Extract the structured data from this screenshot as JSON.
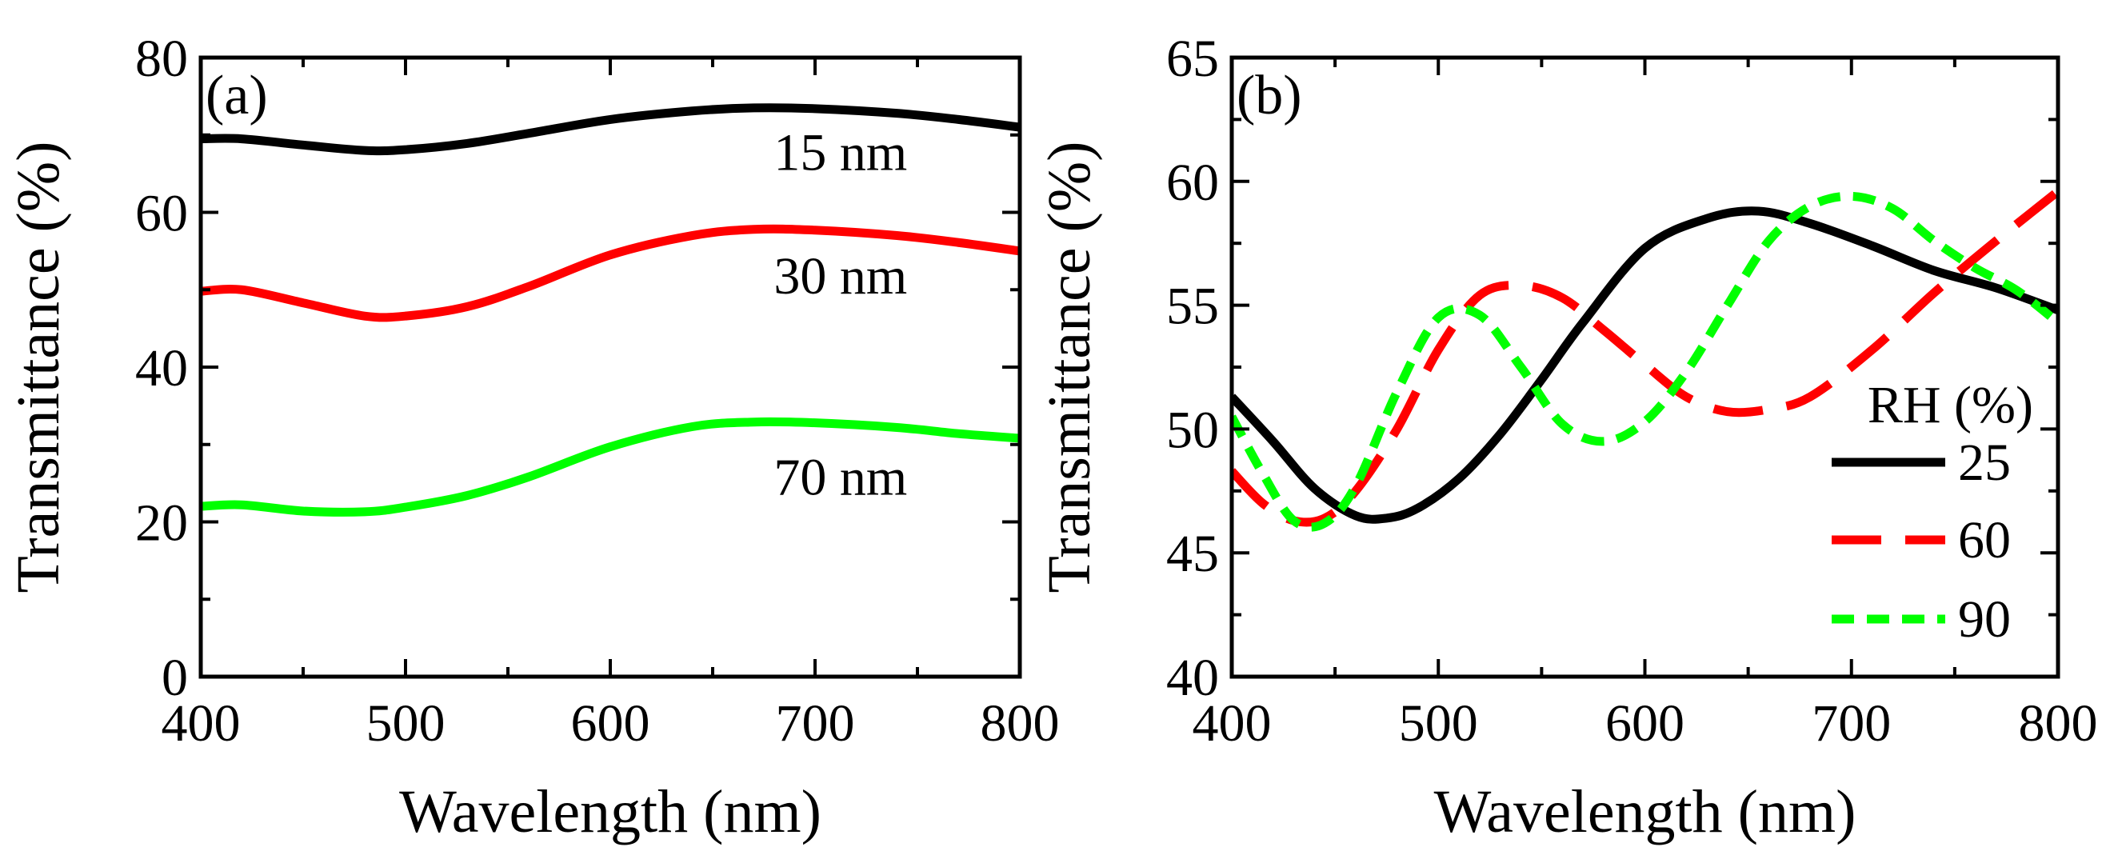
{
  "chart_data": [
    {
      "type": "line",
      "panel_label": "(a)",
      "xlabel": "Wavelength (nm)",
      "ylabel": "Transmittance (%)",
      "xlim": [
        400,
        800
      ],
      "ylim": [
        0,
        80
      ],
      "x_ticks": [
        "400",
        "500",
        "600",
        "700",
        "800"
      ],
      "y_ticks": [
        "0",
        "20",
        "40",
        "60",
        "80"
      ],
      "series": [
        {
          "name": "15 nm",
          "color": "#000000",
          "dash": "solid",
          "x": [
            400,
            420,
            450,
            480,
            500,
            530,
            560,
            600,
            640,
            670,
            700,
            740,
            770,
            800
          ],
          "values": [
            69.5,
            69.5,
            68.7,
            68.0,
            68.1,
            68.9,
            70.2,
            72.0,
            73.1,
            73.5,
            73.4,
            72.8,
            72.0,
            71.0
          ],
          "label": "15 nm",
          "label_x": 745,
          "label_y": 65.5
        },
        {
          "name": "30 nm",
          "color": "#ff0000",
          "dash": "solid",
          "x": [
            400,
            420,
            450,
            480,
            500,
            530,
            560,
            600,
            640,
            670,
            700,
            740,
            770,
            800
          ],
          "values": [
            49.8,
            50.0,
            48.3,
            46.6,
            46.6,
            47.8,
            50.4,
            54.5,
            57.0,
            57.8,
            57.7,
            57.0,
            56.1,
            55.0
          ],
          "label": "30 nm",
          "label_x": 745,
          "label_y": 49.5
        },
        {
          "name": "70 nm",
          "color": "#00ff00",
          "dash": "solid",
          "x": [
            400,
            420,
            450,
            480,
            500,
            530,
            560,
            600,
            640,
            670,
            700,
            740,
            770,
            800
          ],
          "values": [
            22.0,
            22.2,
            21.4,
            21.3,
            21.9,
            23.4,
            25.8,
            29.7,
            32.3,
            32.9,
            32.8,
            32.2,
            31.4,
            30.8
          ],
          "label": "70 nm",
          "label_x": 745,
          "label_y": 23.5
        }
      ]
    },
    {
      "type": "line",
      "panel_label": "(b)",
      "xlabel": "Wavelength (nm)",
      "ylabel": "Transmittance (%)",
      "xlim": [
        400,
        800
      ],
      "ylim": [
        40,
        65
      ],
      "x_ticks": [
        "400",
        "500",
        "600",
        "700",
        "800"
      ],
      "y_ticks": [
        "40",
        "45",
        "50",
        "55",
        "60",
        "65"
      ],
      "legend_title": "RH (%)",
      "legend_position": "bottom-right",
      "series": [
        {
          "name": "25",
          "color": "#000000",
          "dash": "solid",
          "x": [
            400,
            420,
            440,
            460,
            475,
            490,
            510,
            530,
            550,
            570,
            600,
            630,
            655,
            680,
            710,
            740,
            770,
            800
          ],
          "values": [
            51.3,
            49.5,
            47.6,
            46.5,
            46.4,
            46.8,
            48.0,
            49.8,
            52.0,
            54.3,
            57.3,
            58.5,
            58.8,
            58.3,
            57.4,
            56.4,
            55.7,
            54.8
          ]
        },
        {
          "name": "60",
          "color": "#ff0000",
          "dash": "long-dash",
          "x": [
            400,
            415,
            430,
            445,
            460,
            480,
            500,
            520,
            540,
            560,
            580,
            600,
            620,
            640,
            660,
            680,
            710,
            740,
            770,
            800
          ],
          "values": [
            48.3,
            47.0,
            46.3,
            46.4,
            47.5,
            50.0,
            53.2,
            55.4,
            55.8,
            55.3,
            54.0,
            52.6,
            51.3,
            50.7,
            50.8,
            51.3,
            53.2,
            55.5,
            57.6,
            59.6
          ]
        },
        {
          "name": "90",
          "color": "#00ff00",
          "dash": "short-dash",
          "x": [
            400,
            415,
            430,
            445,
            460,
            480,
            500,
            520,
            540,
            560,
            580,
            600,
            620,
            640,
            660,
            680,
            700,
            720,
            740,
            760,
            780,
            800
          ],
          "values": [
            50.5,
            48.2,
            46.3,
            46.2,
            47.7,
            51.5,
            54.5,
            54.6,
            52.5,
            50.2,
            49.5,
            50.3,
            52.3,
            55.0,
            57.6,
            59.0,
            59.4,
            58.9,
            57.6,
            56.5,
            55.6,
            54.3
          ]
        }
      ]
    }
  ]
}
